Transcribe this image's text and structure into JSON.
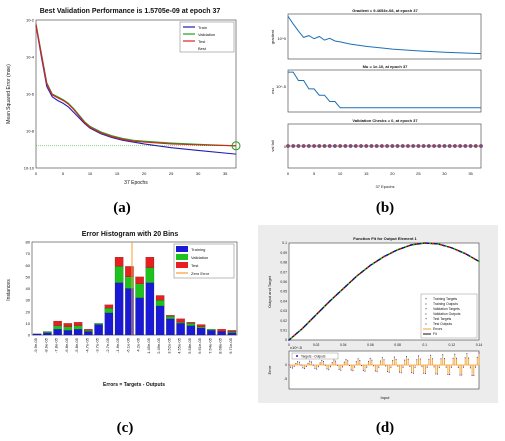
{
  "chart_data": [
    {
      "panel": "a",
      "type": "line",
      "title": "Best Validation Performance is 1.5705e-09 at epoch 37",
      "xlabel": "37 Epochs",
      "ylabel": "Mean Squared Error  (mse)",
      "xlim": [
        0,
        37
      ],
      "ylog": true,
      "ylim_exp": [
        -10,
        -2
      ],
      "x_ticks": [
        "0",
        "5",
        "10",
        "15",
        "20",
        "25",
        "30",
        "35"
      ],
      "y_ticks": [
        "10^-2",
        "10^-4",
        "10^-6",
        "10^-8",
        "10^-10"
      ],
      "legend": [
        "Train",
        "Validation",
        "Test",
        "Best"
      ],
      "colors": {
        "Train": "#1f1fb4",
        "Validation": "#1fa01f",
        "Test": "#e02020",
        "Best": "#1fa01f"
      },
      "series": [
        {
          "name": "Train",
          "x": [
            0,
            1,
            2,
            3,
            4,
            5,
            6,
            7,
            8,
            9,
            10,
            12,
            14,
            16,
            18,
            20,
            25,
            30,
            37
          ],
          "log_values": [
            -2.3,
            -4.0,
            -5.6,
            -6.15,
            -6.35,
            -6.5,
            -6.7,
            -7.0,
            -7.3,
            -7.6,
            -7.85,
            -8.15,
            -8.35,
            -8.5,
            -8.6,
            -8.7,
            -8.9,
            -9.05,
            -9.25
          ]
        },
        {
          "name": "Validation",
          "x": [
            0,
            1,
            2,
            3,
            4,
            5,
            6,
            7,
            8,
            9,
            10,
            12,
            14,
            16,
            18,
            20,
            25,
            30,
            37
          ],
          "log_values": [
            -2.2,
            -3.8,
            -5.4,
            -6.0,
            -6.15,
            -6.3,
            -6.5,
            -6.8,
            -7.15,
            -7.5,
            -7.75,
            -8.05,
            -8.25,
            -8.4,
            -8.5,
            -8.55,
            -8.65,
            -8.72,
            -8.8
          ]
        },
        {
          "name": "Test",
          "x": [
            0,
            1,
            2,
            3,
            4,
            5,
            6,
            7,
            8,
            9,
            10,
            12,
            14,
            16,
            18,
            20,
            25,
            30,
            37
          ],
          "log_values": [
            -2.25,
            -3.9,
            -5.45,
            -6.05,
            -6.2,
            -6.35,
            -6.55,
            -6.85,
            -7.2,
            -7.55,
            -7.8,
            -8.1,
            -8.3,
            -8.45,
            -8.55,
            -8.6,
            -8.7,
            -8.75,
            -8.8
          ]
        }
      ],
      "best": {
        "x": 37,
        "log_value": -8.8
      },
      "caption": "(a)"
    },
    {
      "panel": "b",
      "type": "line",
      "xlabel": "37 Epochs",
      "xlim": [
        0,
        37
      ],
      "x_ticks": [
        "0",
        "5",
        "10",
        "15",
        "20",
        "25",
        "30",
        "35"
      ],
      "subplots": [
        {
          "title": "Gradient = 9.4653e-08, at epoch 37",
          "ylabel": "gradient",
          "y_tick": "10^0",
          "x": [
            0,
            1,
            2,
            3,
            4,
            5,
            6,
            7,
            8,
            9,
            10,
            12,
            15,
            20,
            25,
            30,
            37
          ],
          "values": [
            0.95,
            0.78,
            0.62,
            0.48,
            0.52,
            0.45,
            0.5,
            0.42,
            0.46,
            0.4,
            0.38,
            0.33,
            0.28,
            0.22,
            0.18,
            0.15,
            0.12
          ]
        },
        {
          "title": "Mu = 1e-10, at epoch 37",
          "ylabel": "mu",
          "y_tick": "10^-5",
          "x": [
            0,
            1,
            2,
            3,
            4,
            5,
            6,
            7,
            8,
            9,
            10,
            37
          ],
          "values": [
            0.95,
            0.95,
            0.75,
            0.75,
            0.55,
            0.55,
            0.4,
            0.4,
            0.25,
            0.25,
            0.1,
            0.1
          ]
        },
        {
          "title": "Validation Checks = 0, at epoch 37",
          "ylabel": "val fail",
          "y_tick": "0",
          "x": [
            0,
            1,
            2,
            3,
            4,
            5,
            6,
            7,
            8,
            9,
            10,
            11,
            12,
            13,
            14,
            15,
            16,
            17,
            18,
            19,
            20,
            21,
            22,
            23,
            24,
            25,
            26,
            27,
            28,
            29,
            30,
            31,
            32,
            33,
            34,
            35,
            36,
            37
          ],
          "values": [
            0,
            0,
            0,
            0,
            0,
            0,
            0,
            0,
            0,
            0,
            0,
            0,
            0,
            0,
            0,
            0,
            0,
            0,
            0,
            0,
            0,
            0,
            0,
            0,
            0,
            0,
            0,
            0,
            0,
            0,
            0,
            0,
            0,
            0,
            0,
            0,
            0,
            0
          ]
        }
      ],
      "caption": "(b)"
    },
    {
      "panel": "c",
      "type": "bar",
      "title": "Error Histogram with 20 Bins",
      "xlabel": "Errors = Targets - Outputs",
      "ylabel": "Instances",
      "ylim": [
        0,
        80
      ],
      "y_ticks": [
        "0",
        "10",
        "20",
        "30",
        "40",
        "50",
        "60",
        "70",
        "80"
      ],
      "categories": [
        "-9.9e-05",
        "-8.9e-05",
        "-7.8e-05",
        "-6.8e-05",
        "-5.8e-05",
        "-4.7e-05",
        "-3.7e-05",
        "-2.7e-05",
        "-1.6e-05",
        "-6.1e-06",
        "4.2e-06",
        "1.45e-05",
        "2.49e-05",
        "3.52e-05",
        "4.55e-05",
        "5.58e-05",
        "6.61e-05",
        "7.64e-05",
        "8.68e-05",
        "9.71e-05"
      ],
      "series": [
        {
          "name": "Training",
          "color": "#1a1ad6",
          "values": [
            1,
            2,
            5,
            4,
            5,
            3,
            9,
            19,
            45,
            40,
            32,
            45,
            25,
            14,
            10,
            8,
            6,
            4,
            3,
            2
          ]
        },
        {
          "name": "Validation",
          "color": "#1ec21e",
          "values": [
            0,
            1,
            3,
            3,
            3,
            1,
            1,
            4,
            14,
            10,
            12,
            13,
            5,
            2,
            1,
            2,
            1,
            1,
            0,
            1
          ]
        },
        {
          "name": "Test",
          "color": "#e62020",
          "values": [
            0,
            0,
            4,
            3,
            3,
            1,
            0,
            3,
            8,
            9,
            6,
            9,
            4,
            1,
            3,
            1,
            2,
            0,
            2,
            1
          ]
        }
      ],
      "legend": [
        "Training",
        "Validation",
        "Test",
        "Zero Error"
      ],
      "zero_error_color": "#f0a030",
      "caption": "(c)"
    },
    {
      "panel": "d",
      "type": "line",
      "title": "Function Fit for Output Element 1",
      "xlabel": "Input",
      "ylabel": "Output and Target",
      "ylabel_err": "Error",
      "xlim": [
        0,
        0.14
      ],
      "ylim": [
        0,
        0.1
      ],
      "y_ticks": [
        "0",
        "0.01",
        "0.02",
        "0.03",
        "0.04",
        "0.05",
        "0.06",
        "0.07",
        "0.08",
        "0.09",
        "0.1"
      ],
      "x_ticks": [
        "0",
        "0.02",
        "0.04",
        "0.06",
        "0.08",
        "0.1",
        "0.12",
        "0.14"
      ],
      "err_ticks": [
        "0",
        "-5"
      ],
      "err_scale": "x10^-5",
      "err_legend": "Targets - Outputs",
      "legend": [
        "Training Targets",
        "Training Outputs",
        "Validation Targets",
        "Validation Outputs",
        "Test Targets",
        "Test Outputs",
        "Errors",
        "Fit"
      ],
      "legend_colors": [
        "#1a1ad6",
        "#1a1ad6",
        "#1ec21e",
        "#1ec21e",
        "#e62020",
        "#e62020",
        "#f0a030",
        "#111111"
      ],
      "fit": {
        "x": [
          0,
          0.01,
          0.02,
          0.03,
          0.04,
          0.05,
          0.06,
          0.07,
          0.08,
          0.09,
          0.1,
          0.11,
          0.12,
          0.13,
          0.14
        ],
        "values": [
          0,
          0.012,
          0.026,
          0.04,
          0.053,
          0.066,
          0.077,
          0.086,
          0.093,
          0.098,
          0.1,
          0.099,
          0.095,
          0.089,
          0.081
        ]
      },
      "caption": "(d)"
    }
  ]
}
